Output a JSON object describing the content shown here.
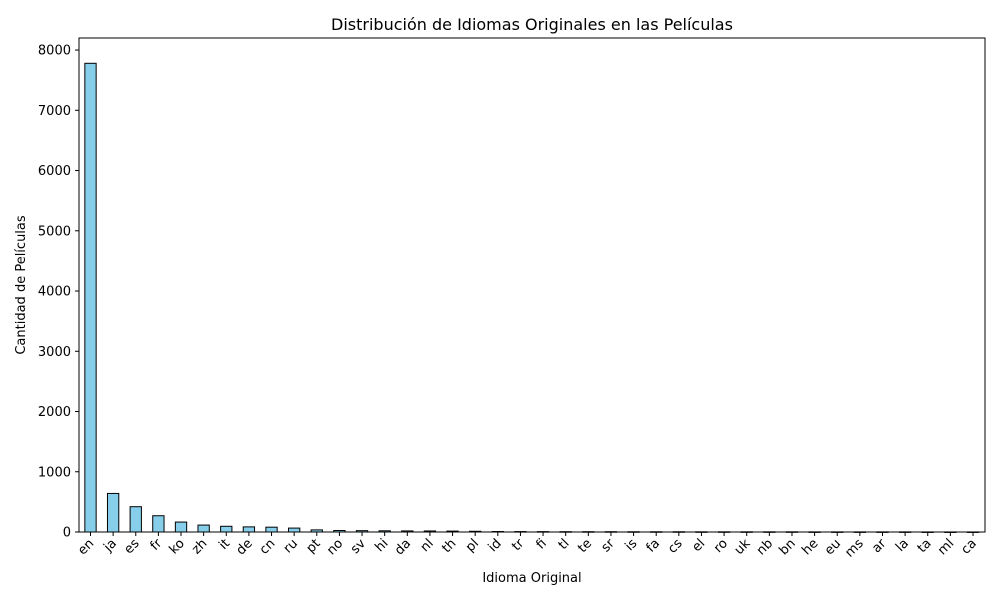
{
  "chart_data": {
    "type": "bar",
    "title": "Distribución de Idiomas Originales en las Películas",
    "xlabel": "Idioma Original",
    "ylabel": "Cantidad de Películas",
    "ylim": [
      0,
      8200
    ],
    "yticks": [
      0,
      1000,
      2000,
      3000,
      4000,
      5000,
      6000,
      7000,
      8000
    ],
    "grid": false,
    "bar_color": "#87CEEB",
    "edge_color": "#000000",
    "categories": [
      "en",
      "ja",
      "es",
      "fr",
      "ko",
      "zh",
      "it",
      "de",
      "cn",
      "ru",
      "pt",
      "no",
      "sv",
      "hi",
      "da",
      "nl",
      "th",
      "pl",
      "id",
      "tr",
      "fi",
      "tl",
      "te",
      "sr",
      "is",
      "fa",
      "cs",
      "el",
      "ro",
      "uk",
      "nb",
      "bn",
      "he",
      "eu",
      "ms",
      "ar",
      "la",
      "ta",
      "ml",
      "ca"
    ],
    "values": [
      7780,
      640,
      420,
      270,
      165,
      115,
      95,
      85,
      80,
      65,
      35,
      25,
      22,
      20,
      18,
      17,
      15,
      12,
      8,
      7,
      6,
      5,
      5,
      5,
      4,
      4,
      4,
      3,
      3,
      3,
      3,
      3,
      2,
      2,
      2,
      2,
      2,
      1,
      1,
      1
    ]
  }
}
